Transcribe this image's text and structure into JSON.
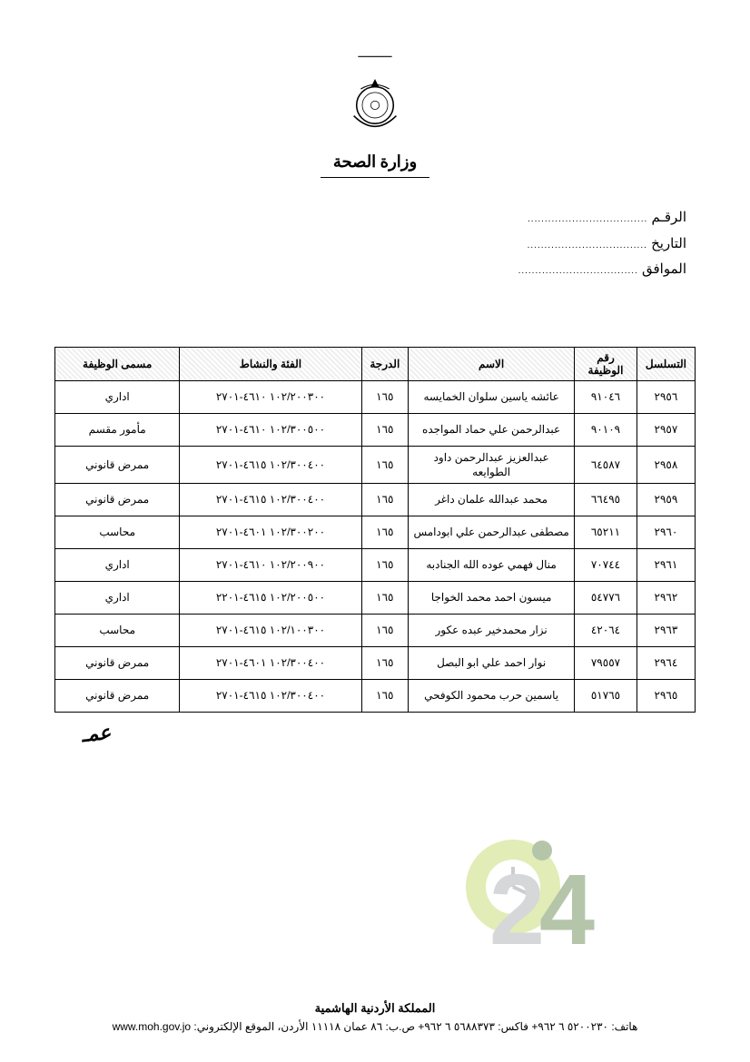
{
  "emblem": {
    "ornament_text": "ـــــــــ",
    "ministry": "وزارة الصحة"
  },
  "meta": {
    "number_label": "الرقـم",
    "date_label": "التاريخ",
    "attach_label": "الموافق",
    "dots": "..................................."
  },
  "table": {
    "columns": [
      {
        "key": "seq",
        "label": "التسلسل"
      },
      {
        "key": "emp",
        "label": "رقم الوظيفة"
      },
      {
        "key": "name",
        "label": "الاسم"
      },
      {
        "key": "mark",
        "label": "الدرجة"
      },
      {
        "key": "code",
        "label": "الفئة والنشاط"
      },
      {
        "key": "job",
        "label": "مسمى الوظيفة"
      }
    ],
    "rows": [
      {
        "seq": "٢٩٥٦",
        "emp": "٩١٠٤٦",
        "name": "عائشه ياسين سلوان الخمايسه",
        "mark": "١٦٥",
        "code": "١٠٢/٢٠٠٣٠٠ ٤٦١٠-٢٧٠١",
        "job": "اداري"
      },
      {
        "seq": "٢٩٥٧",
        "emp": "٩٠١٠٩",
        "name": "عبدالرحمن علي حماد المواجده",
        "mark": "١٦٥",
        "code": "١٠٢/٣٠٠٥٠٠ ٤٦١٠-٢٧٠١",
        "job": "مأمور مقسم"
      },
      {
        "seq": "٢٩٥٨",
        "emp": "٦٤٥٨٧",
        "name": "عبدالعزيز عبدالرحمن داود الطوايعه",
        "mark": "١٦٥",
        "code": "١٠٢/٣٠٠٤٠٠ ٤٦١٥-٢٧٠١",
        "job": "ممرض قانوني"
      },
      {
        "seq": "٢٩٥٩",
        "emp": "٦٦٤٩٥",
        "name": "محمد عبدالله علمان داغر",
        "mark": "١٦٥",
        "code": "١٠٢/٣٠٠٤٠٠ ٤٦١٥-٢٧٠١",
        "job": "ممرض قانوني"
      },
      {
        "seq": "٢٩٦٠",
        "emp": "٦٥٢١١",
        "name": "مصطفى عبدالرحمن علي ابودامس",
        "mark": "١٦٥",
        "code": "١٠٢/٣٠٠٢٠٠ ٤٦٠١-٢٧٠١",
        "job": "محاسب"
      },
      {
        "seq": "٢٩٦١",
        "emp": "٧٠٧٤٤",
        "name": "منال فهمي عوده الله الجنادبه",
        "mark": "١٦٥",
        "code": "١٠٢/٢٠٠٩٠٠ ٤٦١٠-٢٧٠١",
        "job": "اداري"
      },
      {
        "seq": "٢٩٦٢",
        "emp": "٥٤٧٧٦",
        "name": "ميسون احمد محمد الخواجا",
        "mark": "١٦٥",
        "code": "١٠٢/٢٠٠٥٠٠ ٤٦١٥-٢٢٠١",
        "job": "اداري"
      },
      {
        "seq": "٢٩٦٣",
        "emp": "٤٢٠٦٤",
        "name": "نزار محمدخير عبده عكور",
        "mark": "١٦٥",
        "code": "١٠٢/١٠٠٣٠٠ ٤٦١٥-٢٧٠١",
        "job": "محاسب"
      },
      {
        "seq": "٢٩٦٤",
        "emp": "٧٩٥٥٧",
        "name": "نوار احمد علي ابو البصل",
        "mark": "١٦٥",
        "code": "١٠٢/٣٠٠٤٠٠ ٤٦٠١-٢٧٠١",
        "job": "ممرض قانوني"
      },
      {
        "seq": "٢٩٦٥",
        "emp": "٥١٧٦٥",
        "name": "ياسمين حرب محمود الكوفحي",
        "mark": "١٦٥",
        "code": "١٠٢/٣٠٠٤٠٠ ٤٦١٥-٢٧٠١",
        "job": "ممرض قانوني"
      }
    ]
  },
  "signature": "عمـ",
  "watermark": {
    "j_color": "#9a9ea2",
    "o_color": "#b7d04a",
    "two_color": "#9a9ea2",
    "four_color": "#476f2b",
    "text_j": "J",
    "text_2": "2",
    "text_4": "4"
  },
  "footer": {
    "line1": "المملكة الأردنية الهاشمية",
    "line2_pre": "هاتف: ٥٢٠٠٢٣٠ ٦ ٩٦٢+ فاكس: ٥٦٨٨٣٧٣ ٦ ٩٦٢+ ص.ب: ٨٦ عمان ١١١١٨ الأردن، الموقع الإلكتروني: ",
    "url": "www.moh.gov.jo"
  },
  "colors": {
    "text": "#000000",
    "border": "#000000",
    "bg": "#ffffff",
    "header_hatch_light": "#ffffff",
    "header_hatch_dark": "#efefef"
  }
}
